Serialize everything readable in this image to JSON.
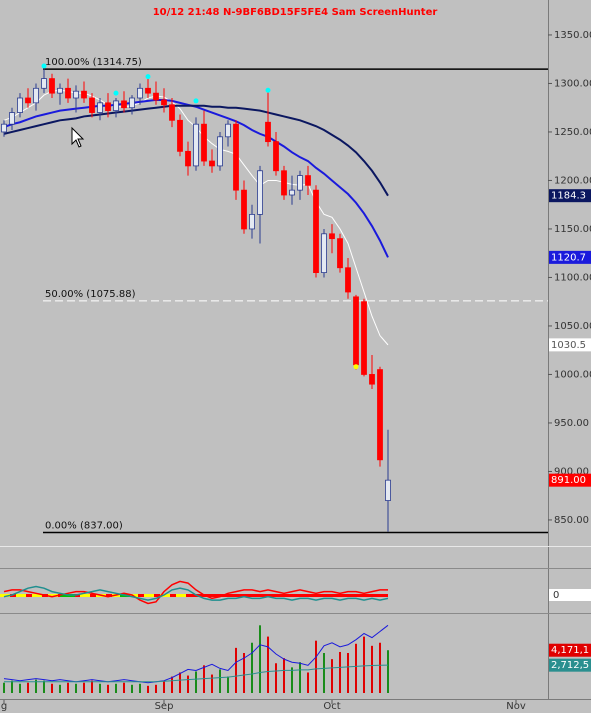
{
  "chart_data": {
    "type": "candlestick",
    "title": "10/12 21:48 N-9BF6BD15F5FE4 Sam ScreenHunter",
    "xlim": [
      -0.5,
      68
    ],
    "xticks": [
      {
        "value": 0,
        "label": "g"
      },
      {
        "value": 20,
        "label": "Sep"
      },
      {
        "value": 41,
        "label": "Oct"
      },
      {
        "value": 64,
        "label": "Nov"
      }
    ],
    "ylim": [
      830,
      1385
    ],
    "yticks": [
      {
        "value": 1350,
        "label": "1350.00"
      },
      {
        "value": 1300,
        "label": "1300.00"
      },
      {
        "value": 1250,
        "label": "1250.00"
      },
      {
        "value": 1200,
        "label": "1200.00"
      },
      {
        "value": 1150,
        "label": "1150.00"
      },
      {
        "value": 1100,
        "label": "1100.00"
      },
      {
        "value": 1050,
        "label": "1050.00"
      },
      {
        "value": 1000,
        "label": "1000.00"
      },
      {
        "value": 950,
        "label": "950.00"
      },
      {
        "value": 900,
        "label": "900.00"
      },
      {
        "value": 850,
        "label": "850.00"
      }
    ],
    "up_color": "#e4e9f2",
    "up_edge": "#2a3b8f",
    "down_color": "#ff0000",
    "open": [
      1250,
      1258,
      1270,
      1285,
      1280,
      1295,
      1305,
      1290,
      1295,
      1285,
      1292,
      1285,
      1270,
      1280,
      1272,
      1282,
      1275,
      1285,
      1295,
      1290,
      1283,
      1278,
      1262,
      1230,
      1215,
      1258,
      1220,
      1215,
      1245,
      1258,
      1190,
      1150,
      1165,
      1260,
      1240,
      1210,
      1185,
      1190,
      1205,
      1190,
      1105,
      1145,
      1140,
      1110,
      1080,
      1075,
      1000,
      1005,
      870
    ],
    "high": [
      1262,
      1275,
      1290,
      1295,
      1300,
      1315,
      1310,
      1300,
      1305,
      1298,
      1302,
      1290,
      1285,
      1290,
      1285,
      1292,
      1288,
      1300,
      1305,
      1302,
      1295,
      1285,
      1268,
      1240,
      1265,
      1272,
      1232,
      1250,
      1262,
      1262,
      1200,
      1175,
      1215,
      1291,
      1250,
      1215,
      1205,
      1210,
      1215,
      1195,
      1150,
      1155,
      1145,
      1120,
      1082,
      1078,
      1020,
      1008,
      943
    ],
    "low": [
      1245,
      1252,
      1265,
      1275,
      1272,
      1290,
      1285,
      1278,
      1280,
      1270,
      1280,
      1265,
      1262,
      1265,
      1265,
      1270,
      1268,
      1278,
      1285,
      1278,
      1270,
      1255,
      1225,
      1205,
      1210,
      1215,
      1208,
      1210,
      1235,
      1180,
      1145,
      1140,
      1135,
      1235,
      1205,
      1180,
      1175,
      1180,
      1185,
      1100,
      1100,
      1125,
      1105,
      1078,
      1005,
      998,
      985,
      905,
      838
    ],
    "close": [
      1258,
      1270,
      1285,
      1280,
      1295,
      1305,
      1290,
      1295,
      1285,
      1292,
      1285,
      1270,
      1280,
      1272,
      1282,
      1275,
      1285,
      1295,
      1290,
      1283,
      1278,
      1262,
      1230,
      1215,
      1258,
      1220,
      1215,
      1245,
      1258,
      1190,
      1150,
      1165,
      1210,
      1240,
      1210,
      1185,
      1190,
      1205,
      1195,
      1105,
      1145,
      1140,
      1110,
      1085,
      1010,
      1000,
      990,
      912,
      891
    ],
    "last_label": "891.00",
    "ma_series": [
      {
        "color": "#ffffff",
        "text_color": "#555555",
        "width": 1,
        "values": [
          1262,
          1265,
          1270,
          1275,
          1280,
          1288,
          1292,
          1293,
          1292,
          1290,
          1290,
          1287,
          1283,
          1278,
          1276,
          1276,
          1277,
          1280,
          1285,
          1287,
          1286,
          1281,
          1274,
          1262,
          1255,
          1245,
          1238,
          1232,
          1230,
          1227,
          1216,
          1205,
          1195,
          1200,
          1200,
          1198,
          1196,
          1195,
          1196,
          1178,
          1165,
          1162,
          1150,
          1135,
          1110,
          1085,
          1060,
          1040,
          1030.5
        ]
      },
      {
        "color": "#1a1adc",
        "text_color": "#ffffff",
        "width": 2,
        "values": [
          1255,
          1258,
          1260,
          1263,
          1266,
          1268,
          1270,
          1272,
          1273,
          1274,
          1275,
          1276,
          1277,
          1277,
          1278,
          1279,
          1280,
          1281,
          1282,
          1283,
          1283,
          1282,
          1280,
          1278,
          1276,
          1273,
          1270,
          1267,
          1264,
          1261,
          1257,
          1252,
          1248,
          1245,
          1240,
          1235,
          1229,
          1224,
          1220,
          1213,
          1207,
          1200,
          1193,
          1186,
          1177,
          1166,
          1153,
          1138,
          1120.7
        ]
      },
      {
        "color": "#0b1760",
        "text_color": "#ffffff",
        "width": 2,
        "values": [
          1248,
          1250,
          1252,
          1254,
          1256,
          1258,
          1260,
          1262,
          1263,
          1264,
          1266,
          1267,
          1268,
          1269,
          1270,
          1271,
          1272,
          1273,
          1274,
          1275,
          1276,
          1277,
          1277,
          1277,
          1277,
          1277,
          1276,
          1276,
          1275,
          1275,
          1274,
          1273,
          1272,
          1270,
          1268,
          1266,
          1264,
          1262,
          1259,
          1256,
          1252,
          1247,
          1242,
          1236,
          1229,
          1220,
          1210,
          1198,
          1184.3
        ]
      }
    ],
    "fib_levels": [
      {
        "label": "100.00% (1314.75)",
        "value": 1314.75,
        "dashed": false
      },
      {
        "label": "50.00% (1075.88)",
        "value": 1075.88,
        "dashed": true
      },
      {
        "label": "0.00% (837.00)",
        "value": 837.0,
        "dashed": false
      }
    ],
    "markers": [
      {
        "index": 5,
        "value": 1318,
        "color": "#00ffff"
      },
      {
        "index": 14,
        "value": 1290,
        "color": "#00ffff"
      },
      {
        "index": 18,
        "value": 1307,
        "color": "#00ffff"
      },
      {
        "index": 24,
        "value": 1282,
        "color": "#00ffff"
      },
      {
        "index": 33,
        "value": 1293,
        "color": "#00ffff"
      },
      {
        "index": 44,
        "value": 1008,
        "color": "#ffff00"
      }
    ],
    "oscillator": {
      "ylim": [
        -1,
        1
      ],
      "yticks": [
        0
      ],
      "series": [
        {
          "color": "#ff0000",
          "values": [
            0.2,
            0.3,
            0.3,
            0.2,
            0.1,
            0.0,
            -0.1,
            0.0,
            0.1,
            0.2,
            0.2,
            0.1,
            0.0,
            -0.1,
            0.0,
            0.1,
            0.0,
            -0.3,
            -0.5,
            -0.4,
            0.2,
            0.6,
            0.8,
            0.7,
            0.3,
            0.0,
            -0.2,
            -0.1,
            0.1,
            0.2,
            0.3,
            0.3,
            0.2,
            0.3,
            0.2,
            0.1,
            0.2,
            0.3,
            0.2,
            0.1,
            0.2,
            0.2,
            0.1,
            0.2,
            0.2,
            0.1,
            0.2,
            0.3,
            0.3
          ]
        },
        {
          "color": "#1f8f8f",
          "values": [
            -0.1,
            0.0,
            0.2,
            0.4,
            0.5,
            0.4,
            0.2,
            0.1,
            0.0,
            0.0,
            0.1,
            0.2,
            0.3,
            0.2,
            0.1,
            0.0,
            -0.1,
            -0.2,
            -0.3,
            -0.2,
            0.0,
            0.3,
            0.4,
            0.3,
            0.0,
            -0.2,
            -0.3,
            -0.3,
            -0.2,
            -0.2,
            -0.1,
            -0.2,
            -0.2,
            -0.1,
            -0.2,
            -0.2,
            -0.3,
            -0.2,
            -0.2,
            -0.3,
            -0.2,
            -0.2,
            -0.3,
            -0.2,
            -0.2,
            -0.3,
            -0.2,
            -0.3,
            -0.2
          ]
        }
      ]
    },
    "volume": {
      "ylim": [
        0,
        7800000
      ],
      "up_color": "#1a8c1a",
      "down_color": "#e00000",
      "values": [
        1000000,
        1200000,
        900000,
        1000000,
        1300000,
        1200000,
        900000,
        800000,
        1000000,
        900000,
        1000000,
        1200000,
        900000,
        800000,
        900000,
        1000000,
        800000,
        900000,
        700000,
        800000,
        1200000,
        1600000,
        2000000,
        1700000,
        2100000,
        2700000,
        1800000,
        2300000,
        1600000,
        4400000,
        3900000,
        4900000,
        6600000,
        5500000,
        2900000,
        3400000,
        2500000,
        3000000,
        2000000,
        5100000,
        3900000,
        3300000,
        4000000,
        3900000,
        4800000,
        5500000,
        4600000,
        4900000,
        4171100
      ],
      "last_label": "4,171,1",
      "lines": [
        {
          "color": "#1a1adc",
          "values": [
            1400000,
            1300000,
            1200000,
            1300000,
            1400000,
            1300000,
            1200000,
            1300000,
            1200000,
            1100000,
            1200000,
            1300000,
            1200000,
            1100000,
            1200000,
            1300000,
            1200000,
            1100000,
            1000000,
            1100000,
            1200000,
            1500000,
            1900000,
            2300000,
            2200000,
            2500000,
            2800000,
            2400000,
            2200000,
            3000000,
            3400000,
            3900000,
            4700000,
            4500000,
            3800000,
            3300000,
            3000000,
            2900000,
            2700000,
            3500000,
            4600000,
            4900000,
            4500000,
            4700000,
            5200000,
            5800000,
            5400000,
            6000000,
            6600000
          ]
        },
        {
          "color": "#2a8f8f",
          "label": "2,712,5",
          "values": [
            1100000,
            1100000,
            1100000,
            1100000,
            1100000,
            1100000,
            1100000,
            1100000,
            1100000,
            1100000,
            1100000,
            1100000,
            1100000,
            1100000,
            1100000,
            1100000,
            1100000,
            1100000,
            1100000,
            1100000,
            1150000,
            1200000,
            1250000,
            1300000,
            1350000,
            1400000,
            1450000,
            1500000,
            1550000,
            1650000,
            1750000,
            1850000,
            2000000,
            2100000,
            2150000,
            2200000,
            2200000,
            2250000,
            2250000,
            2350000,
            2400000,
            2450000,
            2500000,
            2550000,
            2600000,
            2650000,
            2680000,
            2700000,
            2712500
          ]
        }
      ]
    }
  }
}
